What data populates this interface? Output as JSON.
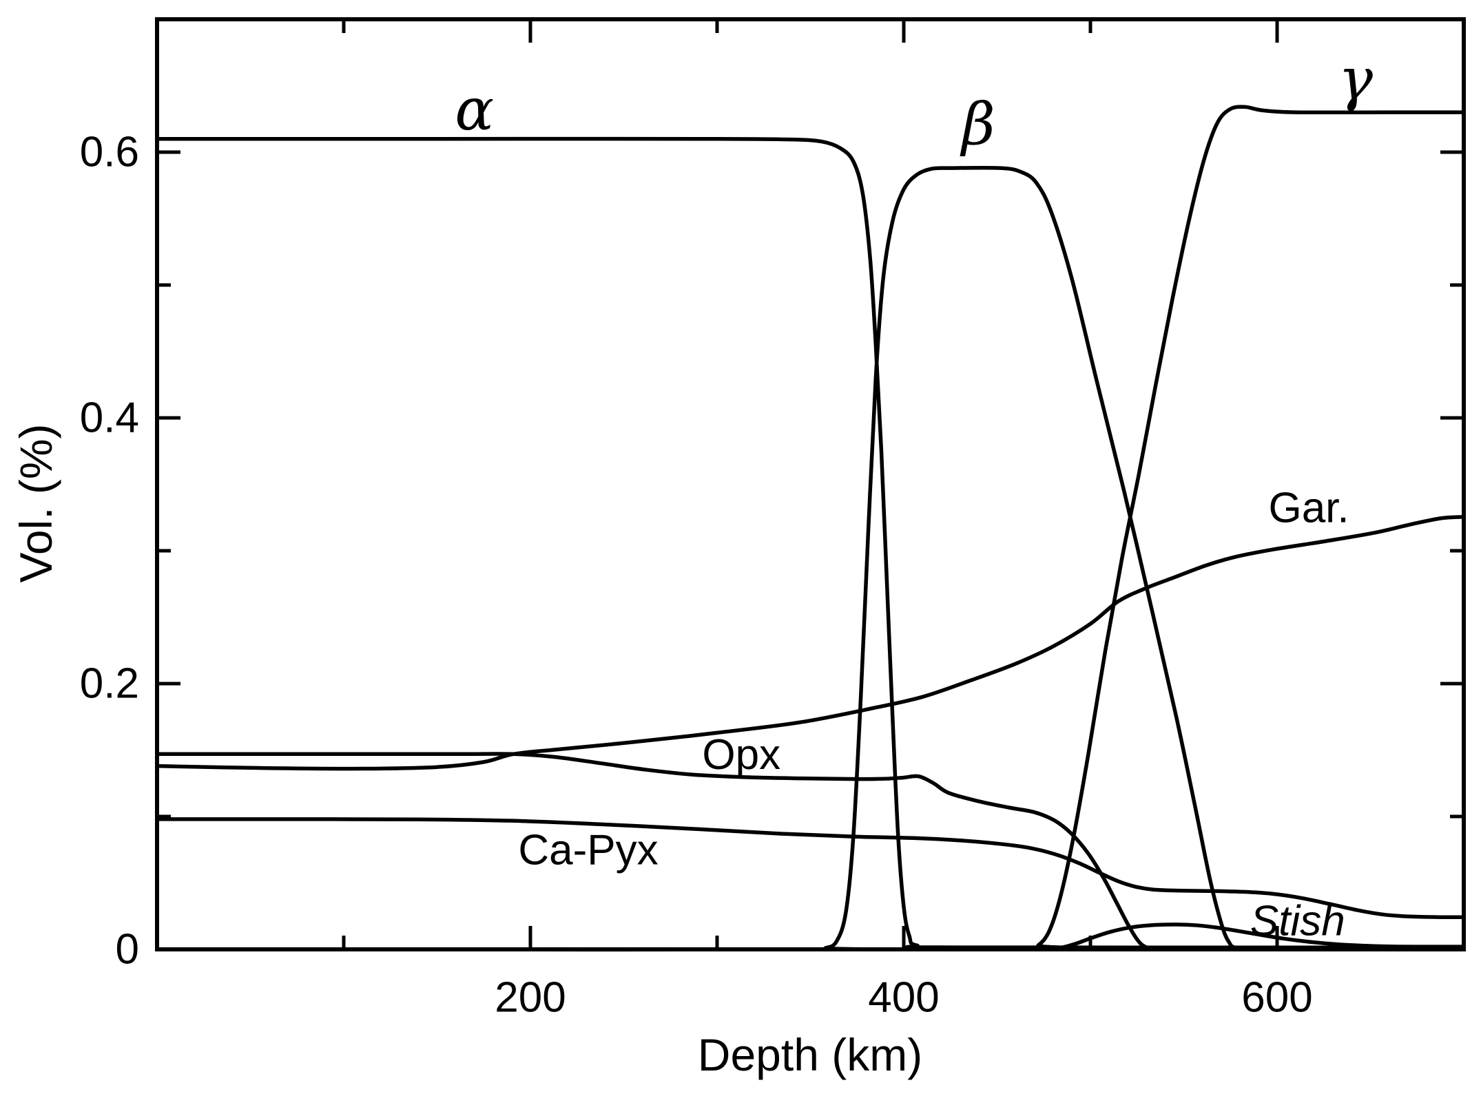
{
  "chart_data": {
    "type": "line",
    "title": "",
    "xlabel": "Depth (km)",
    "ylabel": "Vol. (%)",
    "xlim": [
      0,
      700
    ],
    "ylim": [
      0,
      0.7
    ],
    "grid": false,
    "frame": "closed box with inward ticks on all four sides",
    "background_color": "#ffffff",
    "line_color": "#000000",
    "x_ticks": {
      "major": [
        {
          "value": 200,
          "label": "200"
        },
        {
          "value": 400,
          "label": "400"
        },
        {
          "value": 600,
          "label": "600"
        }
      ],
      "minor": [
        100,
        300,
        500
      ]
    },
    "y_ticks": {
      "major": [
        {
          "value": 0,
          "label": "0"
        },
        {
          "value": 0.2,
          "label": "0.2"
        },
        {
          "value": 0.4,
          "label": "0.4"
        },
        {
          "value": 0.6,
          "label": "0.6"
        }
      ],
      "minor": [
        0.1,
        0.3,
        0.5
      ]
    },
    "legend": "inline curve labels",
    "series": [
      {
        "name": "alpha-olivine",
        "label": "α",
        "label_font": "serif-italic",
        "label_x": 170,
        "label_y": 0.632,
        "points": [
          [
            0,
            0.61
          ],
          [
            150,
            0.61
          ],
          [
            300,
            0.61
          ],
          [
            340,
            0.6095
          ],
          [
            356,
            0.608
          ],
          [
            366,
            0.603
          ],
          [
            373,
            0.593
          ],
          [
            378,
            0.569
          ],
          [
            382,
            0.52
          ],
          [
            385,
            0.455
          ],
          [
            388,
            0.375
          ],
          [
            391,
            0.275
          ],
          [
            394,
            0.175
          ],
          [
            397,
            0.085
          ],
          [
            400,
            0.032
          ],
          [
            403,
            0.01
          ],
          [
            407,
            0.003
          ],
          [
            430,
            0.0015
          ],
          [
            700,
            0.0015
          ]
        ]
      },
      {
        "name": "beta-wadsleyite",
        "label": "β",
        "label_font": "serif-italic",
        "label_x": 440,
        "label_y": 0.621,
        "points": [
          [
            0,
            0
          ],
          [
            350,
            0
          ],
          [
            358,
            0.001
          ],
          [
            364,
            0.006
          ],
          [
            369,
            0.028
          ],
          [
            373,
            0.085
          ],
          [
            377,
            0.19
          ],
          [
            381,
            0.315
          ],
          [
            385,
            0.43
          ],
          [
            389,
            0.505
          ],
          [
            394,
            0.548
          ],
          [
            400,
            0.572
          ],
          [
            407,
            0.583
          ],
          [
            415,
            0.5875
          ],
          [
            425,
            0.588
          ],
          [
            452,
            0.588
          ],
          [
            463,
            0.585
          ],
          [
            471,
            0.577
          ],
          [
            479,
            0.555
          ],
          [
            490,
            0.505
          ],
          [
            503,
            0.43
          ],
          [
            518,
            0.345
          ],
          [
            533,
            0.255
          ],
          [
            546,
            0.175
          ],
          [
            556,
            0.108
          ],
          [
            564,
            0.053
          ],
          [
            570,
            0.02
          ],
          [
            574,
            0.006
          ],
          [
            579,
            0.001
          ],
          [
            600,
            0
          ],
          [
            700,
            0
          ]
        ]
      },
      {
        "name": "gamma-ringwoodite",
        "label": "γ",
        "label_font": "serif-italic",
        "label_x": 642,
        "label_y": 0.655,
        "points": [
          [
            0,
            0
          ],
          [
            465,
            0
          ],
          [
            472,
            0.003
          ],
          [
            478,
            0.014
          ],
          [
            484,
            0.04
          ],
          [
            491,
            0.085
          ],
          [
            499,
            0.148
          ],
          [
            508,
            0.225
          ],
          [
            517,
            0.295
          ],
          [
            526,
            0.358
          ],
          [
            535,
            0.425
          ],
          [
            544,
            0.49
          ],
          [
            553,
            0.55
          ],
          [
            561,
            0.595
          ],
          [
            568,
            0.622
          ],
          [
            575,
            0.6325
          ],
          [
            583,
            0.634
          ],
          [
            592,
            0.6315
          ],
          [
            610,
            0.63
          ],
          [
            660,
            0.63
          ],
          [
            700,
            0.63
          ]
        ]
      },
      {
        "name": "garnet",
        "label": "Gar.",
        "label_font": "sans",
        "label_x": 617,
        "label_y": 0.332,
        "points": [
          [
            0,
            0.138
          ],
          [
            55,
            0.1365
          ],
          [
            110,
            0.136
          ],
          [
            150,
            0.1372
          ],
          [
            175,
            0.141
          ],
          [
            191,
            0.147
          ],
          [
            215,
            0.1505
          ],
          [
            255,
            0.156
          ],
          [
            300,
            0.163
          ],
          [
            345,
            0.171
          ],
          [
            385,
            0.182
          ],
          [
            410,
            0.19
          ],
          [
            435,
            0.202
          ],
          [
            460,
            0.215
          ],
          [
            480,
            0.228
          ],
          [
            500,
            0.245
          ],
          [
            515,
            0.262
          ],
          [
            530,
            0.272
          ],
          [
            545,
            0.28
          ],
          [
            562,
            0.289
          ],
          [
            578,
            0.2955
          ],
          [
            598,
            0.301
          ],
          [
            625,
            0.307
          ],
          [
            652,
            0.3135
          ],
          [
            672,
            0.32
          ],
          [
            688,
            0.3245
          ],
          [
            700,
            0.3255
          ]
        ]
      },
      {
        "name": "orthopyroxene",
        "label": "Opx",
        "label_font": "sans",
        "label_x": 313,
        "label_y": 0.1465,
        "points": [
          [
            0,
            0.147
          ],
          [
            90,
            0.147
          ],
          [
            160,
            0.147
          ],
          [
            191,
            0.147
          ],
          [
            213,
            0.1448
          ],
          [
            237,
            0.1402
          ],
          [
            262,
            0.1352
          ],
          [
            287,
            0.1315
          ],
          [
            315,
            0.1296
          ],
          [
            345,
            0.1287
          ],
          [
            375,
            0.1282
          ],
          [
            390,
            0.1284
          ],
          [
            400,
            0.1293
          ],
          [
            408,
            0.1302
          ],
          [
            416,
            0.125
          ],
          [
            424,
            0.1178
          ],
          [
            440,
            0.1115
          ],
          [
            456,
            0.1068
          ],
          [
            470,
            0.1032
          ],
          [
            481,
            0.0968
          ],
          [
            490,
            0.0868
          ],
          [
            499,
            0.0718
          ],
          [
            507,
            0.0538
          ],
          [
            514,
            0.0352
          ],
          [
            520,
            0.019
          ],
          [
            525,
            0.0075
          ],
          [
            529,
            0.0022
          ],
          [
            535,
            0.0008
          ],
          [
            560,
            0.0005
          ],
          [
            700,
            0.0005
          ]
        ]
      },
      {
        "name": "ca-pyroxene",
        "label": "Ca-Pyx",
        "label_font": "sans",
        "label_x": 231,
        "label_y": 0.0745,
        "points": [
          [
            0,
            0.098
          ],
          [
            70,
            0.098
          ],
          [
            140,
            0.0978
          ],
          [
            190,
            0.0968
          ],
          [
            240,
            0.094
          ],
          [
            290,
            0.0905
          ],
          [
            335,
            0.087
          ],
          [
            375,
            0.0848
          ],
          [
            405,
            0.0838
          ],
          [
            430,
            0.082
          ],
          [
            452,
            0.0793
          ],
          [
            468,
            0.0762
          ],
          [
            482,
            0.0712
          ],
          [
            494,
            0.0648
          ],
          [
            505,
            0.0575
          ],
          [
            515,
            0.0512
          ],
          [
            524,
            0.0472
          ],
          [
            533,
            0.0451
          ],
          [
            545,
            0.0443
          ],
          [
            565,
            0.0439
          ],
          [
            582,
            0.0433
          ],
          [
            597,
            0.0419
          ],
          [
            612,
            0.0389
          ],
          [
            628,
            0.0342
          ],
          [
            643,
            0.0295
          ],
          [
            657,
            0.0262
          ],
          [
            670,
            0.0248
          ],
          [
            685,
            0.0243
          ],
          [
            700,
            0.0242
          ]
        ]
      },
      {
        "name": "stishovite",
        "label": "Stish",
        "label_font": "sans-italic",
        "label_x": 611,
        "label_y": 0.0212,
        "points": [
          [
            0,
            0
          ],
          [
            475,
            0
          ],
          [
            484,
            0.0012
          ],
          [
            492,
            0.0042
          ],
          [
            501,
            0.0088
          ],
          [
            511,
            0.0133
          ],
          [
            522,
            0.0166
          ],
          [
            534,
            0.0183
          ],
          [
            546,
            0.0187
          ],
          [
            557,
            0.0181
          ],
          [
            567,
            0.0165
          ],
          [
            578,
            0.0141
          ],
          [
            590,
            0.0112
          ],
          [
            603,
            0.0082
          ],
          [
            617,
            0.0057
          ],
          [
            632,
            0.0038
          ],
          [
            647,
            0.0027
          ],
          [
            665,
            0.0021
          ],
          [
            685,
            0.002
          ],
          [
            700,
            0.002
          ]
        ]
      }
    ]
  }
}
